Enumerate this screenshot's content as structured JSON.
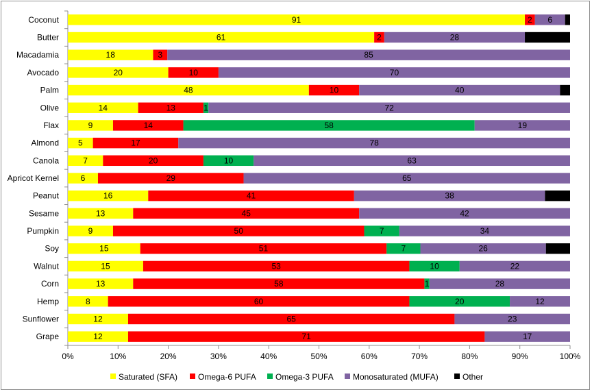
{
  "chart_data": {
    "type": "bar",
    "orientation": "horizontal",
    "stacked": "percent",
    "categories": [
      "Coconut",
      "Butter",
      "Macadamia",
      "Avocado",
      "Palm",
      "Olive",
      "Flax",
      "Almond",
      "Canola",
      "Apricot Kernel",
      "Peanut",
      "Sesame",
      "Pumpkin",
      "Soy",
      "Walnut",
      "Corn",
      "Hemp",
      "Sunflower",
      "Grape"
    ],
    "series": [
      {
        "name": "Saturated (SFA)",
        "color": "#ffff00",
        "values": [
          91,
          61,
          18,
          20,
          48,
          14,
          9,
          5,
          7,
          6,
          16,
          13,
          9,
          15,
          15,
          13,
          8,
          12,
          12
        ]
      },
      {
        "name": "Omega-6 PUFA",
        "color": "#ff0000",
        "values": [
          2,
          2,
          3,
          10,
          10,
          13,
          14,
          17,
          20,
          29,
          41,
          45,
          50,
          51,
          53,
          58,
          60,
          65,
          71
        ]
      },
      {
        "name": "Omega-3 PUFA",
        "color": "#00b050",
        "values": [
          0,
          0,
          0,
          0,
          0,
          1,
          58,
          0,
          10,
          0,
          0,
          0,
          7,
          7,
          10,
          1,
          20,
          0,
          0
        ]
      },
      {
        "name": "Monosaturated (MUFA)",
        "color": "#8064a2",
        "values": [
          6,
          28,
          85,
          70,
          40,
          72,
          19,
          78,
          63,
          65,
          38,
          42,
          34,
          26,
          22,
          28,
          12,
          23,
          17
        ]
      },
      {
        "name": "Other",
        "color": "#000000",
        "values": [
          1,
          9,
          0,
          0,
          2,
          0,
          0,
          0,
          0,
          0,
          5,
          0,
          0,
          5,
          0,
          0,
          0,
          0,
          0
        ]
      }
    ],
    "xticks": [
      "0%",
      "10%",
      "20%",
      "30%",
      "40%",
      "50%",
      "60%",
      "70%",
      "80%",
      "90%",
      "100%"
    ],
    "xlim": [
      0,
      100
    ],
    "grid": false,
    "legend": "bottom",
    "data_labels": [
      [
        "91",
        "2",
        "",
        "6",
        ""
      ],
      [
        "61",
        "2",
        "",
        "28",
        ""
      ],
      [
        "18",
        "3",
        "",
        "85",
        ""
      ],
      [
        "20",
        "10",
        "",
        "70",
        ""
      ],
      [
        "48",
        "10",
        "",
        "40",
        ""
      ],
      [
        "14",
        "13",
        "1",
        "72",
        ""
      ],
      [
        "9",
        "14",
        "58",
        "19",
        ""
      ],
      [
        "5",
        "17",
        "",
        "78",
        ""
      ],
      [
        "7",
        "20",
        "10",
        "63",
        ""
      ],
      [
        "6",
        "29",
        "",
        "65",
        ""
      ],
      [
        "16",
        "41",
        "",
        "38",
        ""
      ],
      [
        "13",
        "45",
        "",
        "42",
        ""
      ],
      [
        "9",
        "50",
        "7",
        "34",
        ""
      ],
      [
        "15",
        "51",
        "7",
        "26",
        ""
      ],
      [
        "15",
        "53",
        "10",
        "22",
        ""
      ],
      [
        "13",
        "58",
        "1",
        "28",
        ""
      ],
      [
        "8",
        "60",
        "20",
        "12",
        ""
      ],
      [
        "12",
        "65",
        "",
        "23",
        ""
      ],
      [
        "12",
        "71",
        "",
        "17",
        ""
      ]
    ]
  }
}
